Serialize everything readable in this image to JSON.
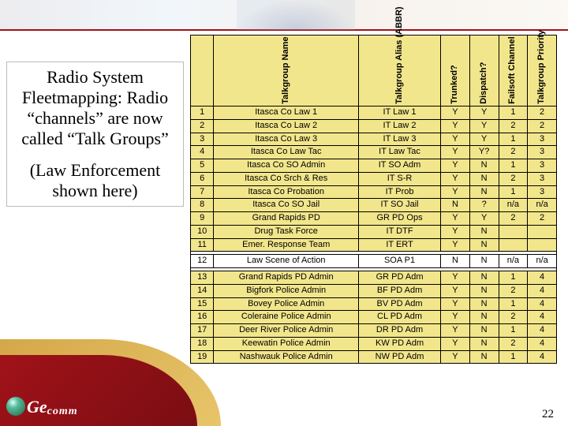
{
  "page_number": "22",
  "logo": {
    "brand1": "Ge",
    "brand2": "comm"
  },
  "text_block": {
    "p1": "Radio System Fleetmapping: Radio “channels” are now called “Talk Groups”",
    "p2": "(Law Enforcement shown here)"
  },
  "table": {
    "columns": [
      {
        "key": "num",
        "label": "",
        "rotated": false,
        "cls": "col-num"
      },
      {
        "key": "name",
        "label": "Talkgroup Name",
        "rotated": true,
        "cls": "col-name"
      },
      {
        "key": "abbr",
        "label": "Talkgroup Alias (ABBR)",
        "rotated": true,
        "cls": "col-abbr"
      },
      {
        "key": "trunk",
        "label": "Trunked?",
        "rotated": true,
        "cls": "col-n"
      },
      {
        "key": "disp",
        "label": "Dispatch?",
        "rotated": true,
        "cls": "col-n"
      },
      {
        "key": "fail",
        "label": "Failsoft Channel",
        "rotated": true,
        "cls": "col-n"
      },
      {
        "key": "prio",
        "label": "Talkgroup Priority",
        "rotated": true,
        "cls": "col-n"
      }
    ],
    "groups": [
      {
        "style": "yellow",
        "rows": [
          {
            "num": "1",
            "name": "Itasca Co Law 1",
            "abbr": "IT Law 1",
            "trunk": "Y",
            "disp": "Y",
            "fail": "1",
            "prio": "2"
          },
          {
            "num": "2",
            "name": "Itasca Co Law 2",
            "abbr": "IT Law 2",
            "trunk": "Y",
            "disp": "Y",
            "fail": "2",
            "prio": "2"
          },
          {
            "num": "3",
            "name": "Itasca Co Law 3",
            "abbr": "IT Law 3",
            "trunk": "Y",
            "disp": "Y",
            "fail": "1",
            "prio": "3"
          },
          {
            "num": "4",
            "name": "Itasca Co Law Tac",
            "abbr": "IT Law Tac",
            "trunk": "Y",
            "disp": "Y?",
            "fail": "2",
            "prio": "3"
          },
          {
            "num": "5",
            "name": "Itasca Co SO Admin",
            "abbr": "IT SO Adm",
            "trunk": "Y",
            "disp": "N",
            "fail": "1",
            "prio": "3"
          },
          {
            "num": "6",
            "name": "Itasca Co Srch & Res",
            "abbr": "IT S-R",
            "trunk": "Y",
            "disp": "N",
            "fail": "2",
            "prio": "3"
          },
          {
            "num": "7",
            "name": "Itasca Co Probation",
            "abbr": "IT Prob",
            "trunk": "Y",
            "disp": "N",
            "fail": "1",
            "prio": "3"
          },
          {
            "num": "8",
            "name": "Itasca Co SO Jail",
            "abbr": "IT SO Jail",
            "trunk": "N",
            "disp": "?",
            "fail": "n/a",
            "prio": "n/a"
          },
          {
            "num": "9",
            "name": "Grand Rapids PD",
            "abbr": "GR PD Ops",
            "trunk": "Y",
            "disp": "Y",
            "fail": "2",
            "prio": "2"
          },
          {
            "num": "10",
            "name": "Drug Task Force",
            "abbr": "IT DTF",
            "trunk": "Y",
            "disp": "N",
            "fail": "",
            "prio": ""
          },
          {
            "num": "11",
            "name": "Emer. Response Team",
            "abbr": "IT ERT",
            "trunk": "Y",
            "disp": "N",
            "fail": "",
            "prio": ""
          }
        ]
      },
      {
        "style": "white",
        "rows": [
          {
            "num": "12",
            "name": "Law Scene of Action",
            "abbr": "SOA P1",
            "trunk": "N",
            "disp": "N",
            "fail": "n/a",
            "prio": "n/a"
          }
        ]
      },
      {
        "style": "yellow",
        "rows": [
          {
            "num": "13",
            "name": "Grand Rapids PD Admin",
            "abbr": "GR PD Adm",
            "trunk": "Y",
            "disp": "N",
            "fail": "1",
            "prio": "4"
          },
          {
            "num": "14",
            "name": "Bigfork Police Admin",
            "abbr": "BF PD Adm",
            "trunk": "Y",
            "disp": "N",
            "fail": "2",
            "prio": "4"
          },
          {
            "num": "15",
            "name": "Bovey Police Admin",
            "abbr": "BV PD Adm",
            "trunk": "Y",
            "disp": "N",
            "fail": "1",
            "prio": "4"
          },
          {
            "num": "16",
            "name": "Coleraine Police Admin",
            "abbr": "CL PD Adm",
            "trunk": "Y",
            "disp": "N",
            "fail": "2",
            "prio": "4"
          },
          {
            "num": "17",
            "name": "Deer River Police Admin",
            "abbr": "DR PD Adm",
            "trunk": "Y",
            "disp": "N",
            "fail": "1",
            "prio": "4"
          },
          {
            "num": "18",
            "name": "Keewatin Police Admin",
            "abbr": "KW PD Adm",
            "trunk": "Y",
            "disp": "N",
            "fail": "2",
            "prio": "4"
          },
          {
            "num": "19",
            "name": "Nashwauk Police Admin",
            "abbr": "NW PD Adm",
            "trunk": "Y",
            "disp": "N",
            "fail": "1",
            "prio": "4"
          }
        ]
      }
    ]
  }
}
